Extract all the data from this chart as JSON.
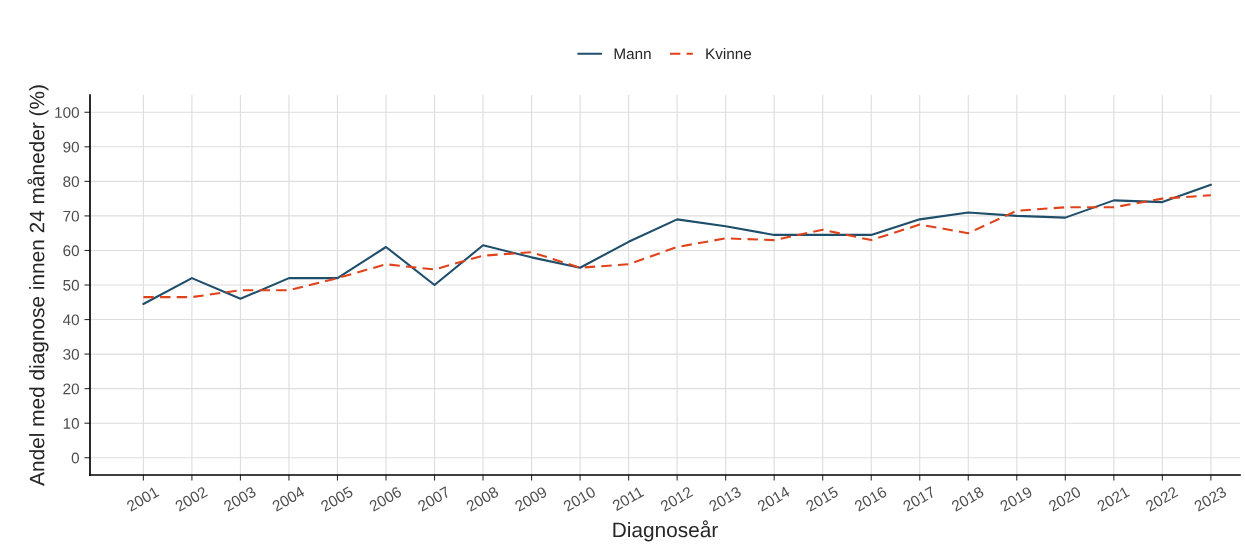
{
  "chart_data": {
    "type": "line",
    "xlabel": "Diagnoseår",
    "ylabel": "Andel med diagnose innen 24 måneder (%)",
    "x": [
      2001,
      2002,
      2003,
      2004,
      2005,
      2006,
      2007,
      2008,
      2009,
      2010,
      2011,
      2012,
      2013,
      2014,
      2015,
      2016,
      2017,
      2018,
      2019,
      2020,
      2021,
      2022,
      2023
    ],
    "series": [
      {
        "name": "Mann",
        "color": "#1f4e6b",
        "line_style": "solid",
        "values": [
          44.5,
          52,
          46,
          52,
          52,
          61,
          50,
          61.5,
          58,
          55,
          62.5,
          69,
          67,
          64.5,
          64.5,
          64.5,
          69,
          71,
          70,
          69.5,
          74.5,
          74,
          79
        ]
      },
      {
        "name": "Kvinne",
        "color": "#e0421a",
        "line_style": "dashed",
        "values": [
          46.5,
          46.5,
          48.5,
          48.5,
          52,
          56,
          54.5,
          58.5,
          59.5,
          55,
          56,
          61,
          63.5,
          63,
          66,
          63,
          67.5,
          65,
          71.5,
          72.5,
          72.5,
          75,
          76
        ]
      }
    ],
    "xlim": [
      1999.9,
      2023.6
    ],
    "xticks": [
      2001,
      2002,
      2003,
      2004,
      2005,
      2006,
      2007,
      2008,
      2009,
      2010,
      2011,
      2012,
      2013,
      2014,
      2015,
      2016,
      2017,
      2018,
      2019,
      2020,
      2021,
      2022,
      2023
    ],
    "ylim": [
      -5,
      105
    ],
    "yticks": [
      0,
      10,
      20,
      30,
      40,
      50,
      60,
      70,
      80,
      90,
      100
    ],
    "grid": true,
    "legend": "top"
  }
}
